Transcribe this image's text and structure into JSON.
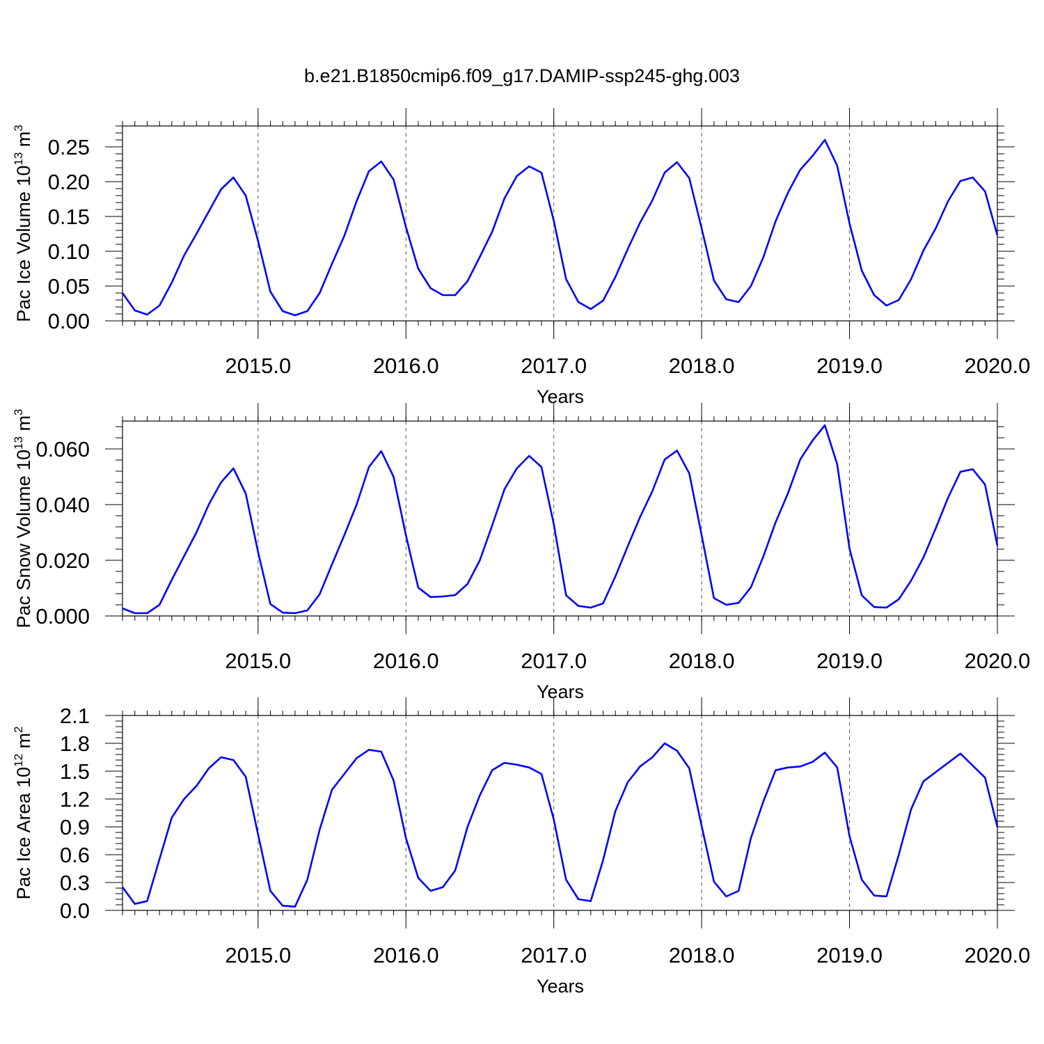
{
  "title": "b.e21.B1850cmip6.f09_g17.DAMIP-ssp245-ghg.003",
  "colors": {
    "series": "#0000ff",
    "axes": "#000000",
    "grid": "#555555"
  },
  "chart_data": [
    {
      "type": "line",
      "ylabel_main": "Pac Ice Volume 10",
      "ylabel_exp": "13",
      "ylabel_unit": " m",
      "ylabel_unit_exp": "3",
      "xlabel": "Years",
      "xlim": [
        2014.083,
        2020.0
      ],
      "ylim": [
        0.0,
        0.28
      ],
      "yticks": [
        "0.00",
        "0.05",
        "0.10",
        "0.15",
        "0.20",
        "0.25"
      ],
      "ytick_values": [
        0.0,
        0.05,
        0.1,
        0.15,
        0.2,
        0.25
      ],
      "xticks": [
        "2015.0",
        "2016.0",
        "2017.0",
        "2018.0",
        "2019.0",
        "2020.0"
      ],
      "xtick_values": [
        2015,
        2016,
        2017,
        2018,
        2019,
        2020
      ],
      "grid": "vertical dashed at major x ticks",
      "series": [
        {
          "values": [
            0.04,
            0.015,
            0.009,
            0.022,
            0.055,
            0.094,
            0.125,
            0.157,
            0.189,
            0.206,
            0.18,
            0.115,
            0.042,
            0.014,
            0.008,
            0.014,
            0.04,
            0.082,
            0.122,
            0.172,
            0.215,
            0.229,
            0.203,
            0.135,
            0.075,
            0.047,
            0.037,
            0.037,
            0.057,
            0.092,
            0.128,
            0.176,
            0.208,
            0.222,
            0.213,
            0.144,
            0.06,
            0.027,
            0.017,
            0.029,
            0.063,
            0.103,
            0.141,
            0.173,
            0.213,
            0.228,
            0.205,
            0.133,
            0.058,
            0.031,
            0.027,
            0.05,
            0.091,
            0.143,
            0.184,
            0.217,
            0.237,
            0.26,
            0.223,
            0.14,
            0.072,
            0.037,
            0.022,
            0.03,
            0.06,
            0.101,
            0.133,
            0.172,
            0.201,
            0.206,
            0.186,
            0.123
          ]
        }
      ]
    },
    {
      "type": "line",
      "ylabel_main": "Pac Snow Volume 10",
      "ylabel_exp": "13",
      "ylabel_unit": " m",
      "ylabel_unit_exp": "3",
      "xlabel": "Years",
      "xlim": [
        2014.083,
        2020.0
      ],
      "ylim": [
        0.0,
        0.07
      ],
      "yticks": [
        "0.000",
        "0.020",
        "0.040",
        "0.060"
      ],
      "ytick_values": [
        0.0,
        0.02,
        0.04,
        0.06
      ],
      "xticks": [
        "2015.0",
        "2016.0",
        "2017.0",
        "2018.0",
        "2019.0",
        "2020.0"
      ],
      "xtick_values": [
        2015,
        2016,
        2017,
        2018,
        2019,
        2020
      ],
      "grid": "vertical dashed at major x ticks",
      "series": [
        {
          "values": [
            0.0027,
            0.001,
            0.001,
            0.004,
            0.013,
            0.0215,
            0.03,
            0.04,
            0.048,
            0.053,
            0.044,
            0.023,
            0.0043,
            0.0012,
            0.001,
            0.002,
            0.0078,
            0.0185,
            0.029,
            0.04,
            0.0535,
            0.0592,
            0.05,
            0.029,
            0.0102,
            0.0068,
            0.007,
            0.0075,
            0.0115,
            0.02,
            0.0325,
            0.0455,
            0.053,
            0.0575,
            0.0535,
            0.033,
            0.0074,
            0.0036,
            0.003,
            0.0045,
            0.0142,
            0.025,
            0.0355,
            0.0448,
            0.0562,
            0.0594,
            0.0512,
            0.029,
            0.0064,
            0.004,
            0.0047,
            0.0103,
            0.0213,
            0.0336,
            0.044,
            0.0562,
            0.063,
            0.0685,
            0.0545,
            0.0242,
            0.0074,
            0.0032,
            0.003,
            0.006,
            0.0127,
            0.021,
            0.0315,
            0.0425,
            0.0518,
            0.0527,
            0.0472,
            0.0253
          ]
        }
      ]
    },
    {
      "type": "line",
      "ylabel_main": "Pac Ice Area 10",
      "ylabel_exp": "12",
      "ylabel_unit": " m",
      "ylabel_unit_exp": "2",
      "xlabel": "Years",
      "xlim": [
        2014.083,
        2020.0
      ],
      "ylim": [
        0.0,
        2.1
      ],
      "yticks": [
        "0.0",
        "0.3",
        "0.6",
        "0.9",
        "1.2",
        "1.5",
        "1.8",
        "2.1"
      ],
      "ytick_values": [
        0.0,
        0.3,
        0.6,
        0.9,
        1.2,
        1.5,
        1.8,
        2.1
      ],
      "xticks": [
        "2015.0",
        "2016.0",
        "2017.0",
        "2018.0",
        "2019.0",
        "2020.0"
      ],
      "xtick_values": [
        2015,
        2016,
        2017,
        2018,
        2019,
        2020
      ],
      "grid": "vertical dashed at major x ticks",
      "series": [
        {
          "values": [
            0.25,
            0.07,
            0.1,
            0.55,
            1.0,
            1.2,
            1.34,
            1.53,
            1.65,
            1.62,
            1.44,
            0.82,
            0.21,
            0.05,
            0.04,
            0.33,
            0.87,
            1.3,
            1.47,
            1.64,
            1.73,
            1.71,
            1.4,
            0.78,
            0.35,
            0.21,
            0.25,
            0.43,
            0.9,
            1.24,
            1.51,
            1.59,
            1.57,
            1.54,
            1.47,
            0.98,
            0.33,
            0.12,
            0.1,
            0.54,
            1.07,
            1.38,
            1.55,
            1.65,
            1.8,
            1.72,
            1.53,
            0.91,
            0.31,
            0.15,
            0.21,
            0.78,
            1.17,
            1.51,
            1.54,
            1.55,
            1.6,
            1.7,
            1.54,
            0.8,
            0.33,
            0.16,
            0.15,
            0.6,
            1.09,
            1.39,
            1.49,
            1.59,
            1.69,
            1.56,
            1.43,
            0.9
          ]
        }
      ]
    }
  ]
}
